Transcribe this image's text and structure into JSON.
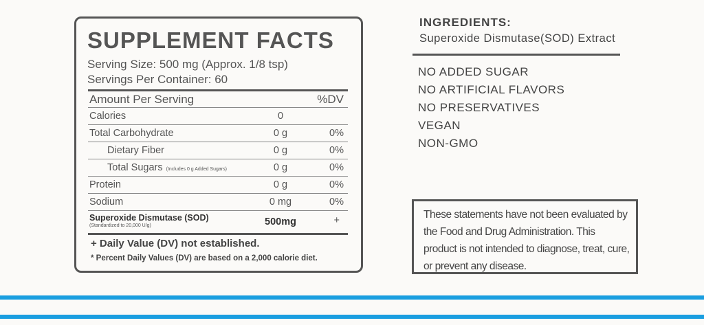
{
  "panel": {
    "title": "SUPPLEMENT FACTS",
    "serving_size": "Serving Size: 500 mg (Approx. 1/8 tsp)",
    "servings_per_container": "Servings Per Container: 60",
    "header": {
      "amount": "Amount Per Serving",
      "dv": "%DV"
    },
    "rows": [
      {
        "name": "Calories",
        "amount": "0"
      },
      {
        "name": "Total Carbohydrate",
        "amount": "0 g",
        "dv": "0%"
      },
      {
        "name": "Dietary Fiber",
        "amount": "0 g",
        "dv": "0%"
      },
      {
        "name": "Total Sugars",
        "note": "(Includes 0 g Added Sugars)",
        "amount": "0 g",
        "dv": "0%"
      },
      {
        "name": "Protein",
        "amount": "0 g",
        "dv": "0%"
      },
      {
        "name": "Sodium",
        "amount": "0 mg",
        "dv": "0%"
      },
      {
        "name": "Superoxide Dismutase (SOD)",
        "note": "(Standardized to 20,000 U/g)",
        "amount": "500mg",
        "dv": "+"
      }
    ],
    "footnotes": [
      "+ Daily Value (DV) not established.",
      "* Percent Daily Values (DV) are based on a 2,000 calorie diet."
    ]
  },
  "ingredients": {
    "title": "INGREDIENTS:",
    "text": "Superoxide Dismutase(SOD) Extract"
  },
  "claims": [
    "NO ADDED SUGAR",
    "NO ARTIFICIAL FLAVORS",
    "NO PRESERVATIVES",
    "VEGAN",
    "NON-GMO"
  ],
  "disclaimer": "These statements have not been evaluated by the Food and Drug Administration. This product is not intended to diagnose, treat, cure, or prevent any disease."
}
